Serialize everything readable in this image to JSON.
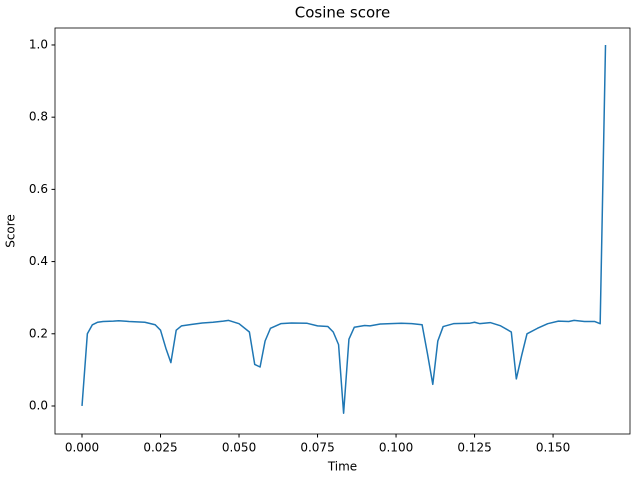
{
  "chart_data": {
    "type": "line",
    "title": "Cosine score",
    "x_label": "Time",
    "y_label": "Score",
    "x": [
      0,
      0.0017,
      0.0033,
      0.005,
      0.0067,
      0.01,
      0.0117,
      0.015,
      0.02,
      0.0233,
      0.025,
      0.0267,
      0.0283,
      0.03,
      0.0317,
      0.035,
      0.0383,
      0.0417,
      0.045,
      0.0467,
      0.05,
      0.0533,
      0.055,
      0.0567,
      0.0583,
      0.06,
      0.0633,
      0.0667,
      0.0717,
      0.075,
      0.0783,
      0.08,
      0.0817,
      0.0833,
      0.085,
      0.0867,
      0.09,
      0.0917,
      0.095,
      0.0983,
      0.1017,
      0.105,
      0.1083,
      0.11,
      0.1117,
      0.1133,
      0.115,
      0.1183,
      0.1233,
      0.125,
      0.1267,
      0.13,
      0.1333,
      0.1367,
      0.1383,
      0.14,
      0.1417,
      0.145,
      0.1483,
      0.1517,
      0.155,
      0.1567,
      0.16,
      0.1633,
      0.165,
      0.1667
    ],
    "series": [
      {
        "name": "Cosine score",
        "color": "#1f77b4",
        "values": [
          0.0,
          0.2,
          0.225,
          0.232,
          0.234,
          0.235,
          0.236,
          0.234,
          0.232,
          0.225,
          0.21,
          0.16,
          0.12,
          0.21,
          0.222,
          0.226,
          0.23,
          0.232,
          0.235,
          0.237,
          0.228,
          0.205,
          0.115,
          0.108,
          0.18,
          0.215,
          0.228,
          0.23,
          0.229,
          0.222,
          0.22,
          0.205,
          0.17,
          -0.02,
          0.185,
          0.218,
          0.223,
          0.222,
          0.227,
          0.228,
          0.229,
          0.228,
          0.225,
          0.145,
          0.06,
          0.18,
          0.22,
          0.228,
          0.229,
          0.232,
          0.228,
          0.231,
          0.222,
          0.205,
          0.075,
          0.14,
          0.2,
          0.215,
          0.228,
          0.235,
          0.234,
          0.237,
          0.234,
          0.234,
          0.228,
          1.0
        ]
      }
    ],
    "xlim": [
      -0.0086,
      0.1745
    ],
    "ylim": [
      -0.0776,
      1.047
    ],
    "xticks": [
      {
        "value": 0,
        "label": "0.000"
      },
      {
        "value": 0.025,
        "label": "0.025"
      },
      {
        "value": 0.05,
        "label": "0.050"
      },
      {
        "value": 0.075,
        "label": "0.075"
      },
      {
        "value": 0.1,
        "label": "0.100"
      },
      {
        "value": 0.125,
        "label": "0.125"
      },
      {
        "value": 0.15,
        "label": "0.150"
      }
    ],
    "yticks": [
      {
        "value": 0,
        "label": "0.0"
      },
      {
        "value": 0.2,
        "label": "0.2"
      },
      {
        "value": 0.4,
        "label": "0.4"
      },
      {
        "value": 0.6,
        "label": "0.6"
      },
      {
        "value": 0.8,
        "label": "0.8"
      },
      {
        "value": 1,
        "label": "1.0"
      }
    ],
    "grid": false
  }
}
